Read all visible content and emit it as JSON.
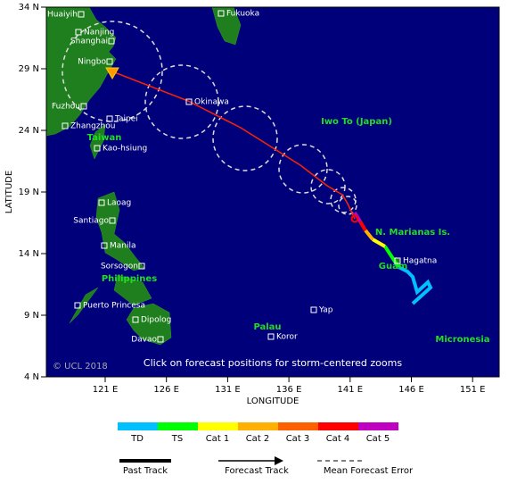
{
  "map": {
    "latitude_ticks": [
      "34 N",
      "29 N",
      "24 N",
      "19 N",
      "14 N",
      "9 N",
      "4 N"
    ],
    "longitude_ticks": [
      "121 E",
      "126 E",
      "131 E",
      "136 E",
      "141 E",
      "146 E",
      "151 E"
    ],
    "x_axis_title": "LONGITUDE",
    "y_axis_title": "LATITUDE",
    "cities": [
      "Huaiyih",
      "Fukuoka",
      "Nanjing",
      "Shanghai",
      "Ningbo",
      "Okinawa",
      "Fuzhou",
      "Taipei",
      "Zhangzhou",
      "Kao-hsiung",
      "Laoag",
      "Santiago",
      "Manila",
      "Sorsogon",
      "Puerto Princesa",
      "Dipolog",
      "Davao",
      "Yap",
      "Koror",
      "Hagatna"
    ],
    "regions": [
      "Iwo To (Japan)",
      "Taiwan",
      "N. Marianas Is.",
      "Guam",
      "Philippines",
      "Palau",
      "Micronesia"
    ],
    "copyright": "© UCL 2018",
    "note": "Click on forecast positions for storm-centered zooms",
    "intensity_legend": [
      "TD",
      "TS",
      "Cat 1",
      "Cat 2",
      "Cat 3",
      "Cat 4",
      "Cat 5"
    ],
    "track_legend": [
      "Past Track",
      "Forecast Track",
      "Mean Forecast Error"
    ]
  }
}
